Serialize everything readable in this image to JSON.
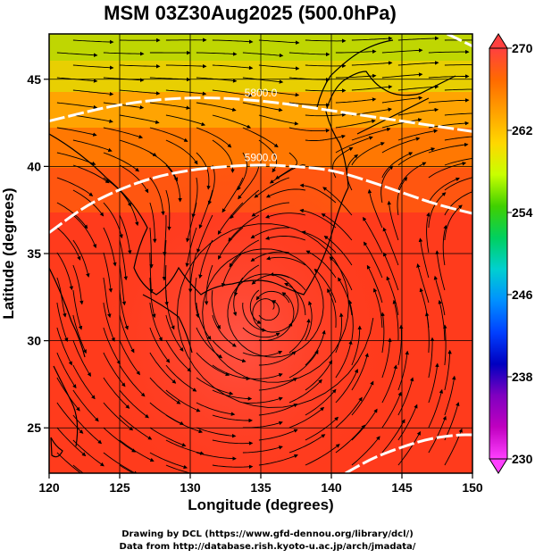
{
  "title": "MSM 03Z30Aug2025 (500.0hPa)",
  "xlabel": "Longitude (degrees)",
  "ylabel": "Latitude  (degrees)",
  "credit_line1": "Drawing by DCL (https://www.gfd-dennou.org/library/dcl/)",
  "credit_line2": "Data from http://database.rish.kyoto-u.ac.jp/arch/jmadata/",
  "chart_data": {
    "type": "heatmap",
    "field": "temperature (K) with streamlines and geopotential height contours",
    "xlim": [
      120,
      150
    ],
    "ylim": [
      22.4,
      47.6
    ],
    "x_ticks": [
      120,
      125,
      130,
      135,
      140,
      145,
      150
    ],
    "y_ticks": [
      25,
      30,
      35,
      40,
      45
    ],
    "grid": true,
    "colorbar": {
      "min": 230,
      "max": 270,
      "labels": [
        270,
        262,
        254,
        246,
        238,
        230
      ],
      "colors": [
        "#ff4040",
        "#ff6a00",
        "#ffa000",
        "#ffd700",
        "#c8ff00",
        "#40d000",
        "#00d060",
        "#00d0d0",
        "#0090ff",
        "#0040ff",
        "#0000c0",
        "#8000c0",
        "#c000c0",
        "#ff40ff"
      ]
    },
    "contours": [
      {
        "label": "5800.0",
        "lon": [
          120,
          125,
          130,
          135,
          140,
          145,
          150
        ],
        "lat": [
          42.6,
          43.6,
          44.0,
          43.8,
          43.2,
          42.6,
          42.0
        ]
      },
      {
        "label": "5900.0",
        "lon": [
          120,
          122.5,
          125,
          127.5,
          130,
          132.5,
          135,
          137.5,
          140,
          142.5,
          145,
          147.5,
          150
        ],
        "lat": [
          36.2,
          37.7,
          38.7,
          39.4,
          39.8,
          40.0,
          40.1,
          40.0,
          39.8,
          39.2,
          38.5,
          37.8,
          37.3
        ]
      },
      {
        "label": "",
        "lon": [
          141,
          143,
          145,
          147,
          149,
          150
        ],
        "lat": [
          22.4,
          23.3,
          23.9,
          24.4,
          24.6,
          24.6
        ]
      },
      {
        "label": "",
        "lon": [
          148.2,
          149,
          150
        ],
        "lat": [
          47.6,
          47.3,
          46.9
        ]
      }
    ],
    "vortex_center": {
      "lon": 135.6,
      "lat": 31.8
    }
  }
}
